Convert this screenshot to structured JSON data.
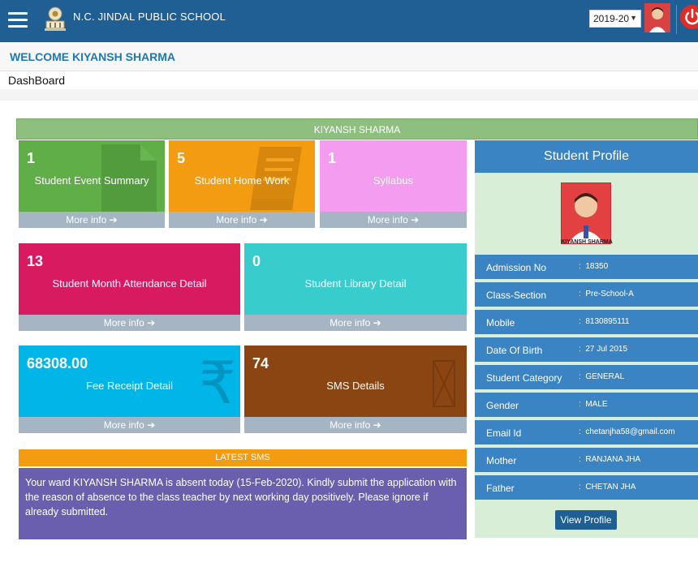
{
  "header": {
    "school_name": "N.C. JINDAL PUBLIC SCHOOL",
    "session": "2019-20",
    "icons": [
      "menu-icon",
      "school-logo",
      "avatar",
      "power-icon"
    ]
  },
  "welcome": "WELCOME KIYANSH SHARMA",
  "breadcrumb": "DashBoard",
  "student_banner": "KIYANSH SHARMA",
  "tiles": [
    {
      "count": "1",
      "label": "Student Event Summary",
      "more": "More info",
      "color": "#5fae48",
      "icon": "document-icon"
    },
    {
      "count": "5",
      "label": "Student Home Work",
      "more": "More info",
      "color": "#f39c12",
      "icon": "book-icon"
    },
    {
      "count": "1",
      "label": "Syllabus",
      "more": "More info",
      "color": "#f49cf0",
      "icon": "list-icon"
    },
    {
      "count": "13",
      "label": "Student Month Attendance Detail",
      "more": "More info",
      "color": "#d81b60",
      "icon": "calendar-icon"
    },
    {
      "count": "0",
      "label": "Student Library Detail",
      "more": "More info",
      "color": "#39cccc",
      "icon": "library-icon"
    },
    {
      "count": "68308.00",
      "label": "Fee Receipt Detail",
      "more": "More info",
      "color": "#00b5e8",
      "icon": "rupee-icon"
    },
    {
      "count": "74",
      "label": "SMS Details",
      "more": "More info",
      "color": "#8b4513",
      "icon": "envelope-icon"
    }
  ],
  "profile": {
    "title": "Student Profile",
    "photo_caption": "KIYANSH SHARMA",
    "rows": [
      {
        "key": "Admission No",
        "value": "18350"
      },
      {
        "key": "Class-Section",
        "value": "Pre-School-A"
      },
      {
        "key": "Mobile",
        "value": "8130895111"
      },
      {
        "key": "Date Of Birth",
        "value": "27 Jul 2015"
      },
      {
        "key": "Student Category",
        "value": "GENERAL"
      },
      {
        "key": "Gender",
        "value": "MALE"
      },
      {
        "key": "Email Id",
        "value": "chetanjha58@gmail.com"
      },
      {
        "key": "Mother",
        "value": "RANJANA JHA"
      },
      {
        "key": "Father",
        "value": "CHETAN JHA"
      }
    ],
    "view_button": "View Profile"
  },
  "sms": {
    "title": "LATEST SMS",
    "message": "Your ward KIYANSH SHARMA is absent today (15-Feb-2020). Kindly submit the application with the reason of absence to the class teacher by next working day positively. Please ignore if already submitted."
  }
}
